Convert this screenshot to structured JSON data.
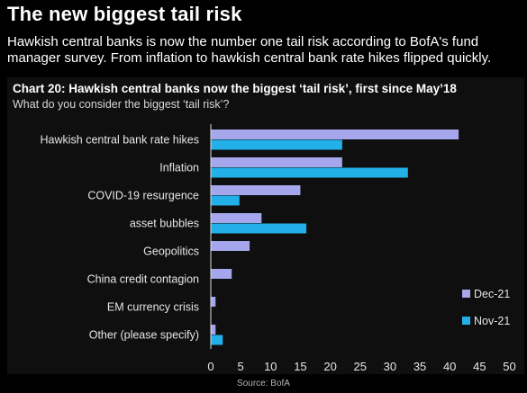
{
  "headline": "The new biggest tail risk",
  "subtitle": "Hawkish central banks is now the number one tail risk according to BofA's fund manager survey. From inflation to hawkish central bank rate hikes flipped quickly.",
  "source": "Source: BofA",
  "colors": {
    "dec": "#a5a6ec",
    "nov": "#23b0e8",
    "panel": "#0f0f0f",
    "axis": "#dcdcdc"
  },
  "chart_data": {
    "type": "bar",
    "orientation": "horizontal",
    "title": "Chart 20: Hawkish central banks now the biggest ‘tail risk’, first since May’18",
    "subtitle": "What do you consider the biggest ‘tail risk’?",
    "categories": [
      "Hawkish central bank rate hikes",
      "Inflation",
      "COVID-19 resurgence",
      "asset bubbles",
      "Geopolitics",
      "China credit contagion",
      "EM currency crisis",
      "Other (please specify)"
    ],
    "series": [
      {
        "name": "Dec-21",
        "values": [
          41.5,
          22,
          15,
          8.5,
          6.5,
          3.5,
          0.8,
          0.8
        ]
      },
      {
        "name": "Nov-21",
        "values": [
          22,
          33,
          4.8,
          16,
          0,
          0,
          0,
          2
        ]
      }
    ],
    "xlim": [
      0,
      50
    ],
    "xticks": [
      "0",
      "5",
      "10",
      "15",
      "20",
      "25",
      "30",
      "35",
      "40",
      "45",
      "50"
    ],
    "legend_position": "right",
    "grid": false
  }
}
